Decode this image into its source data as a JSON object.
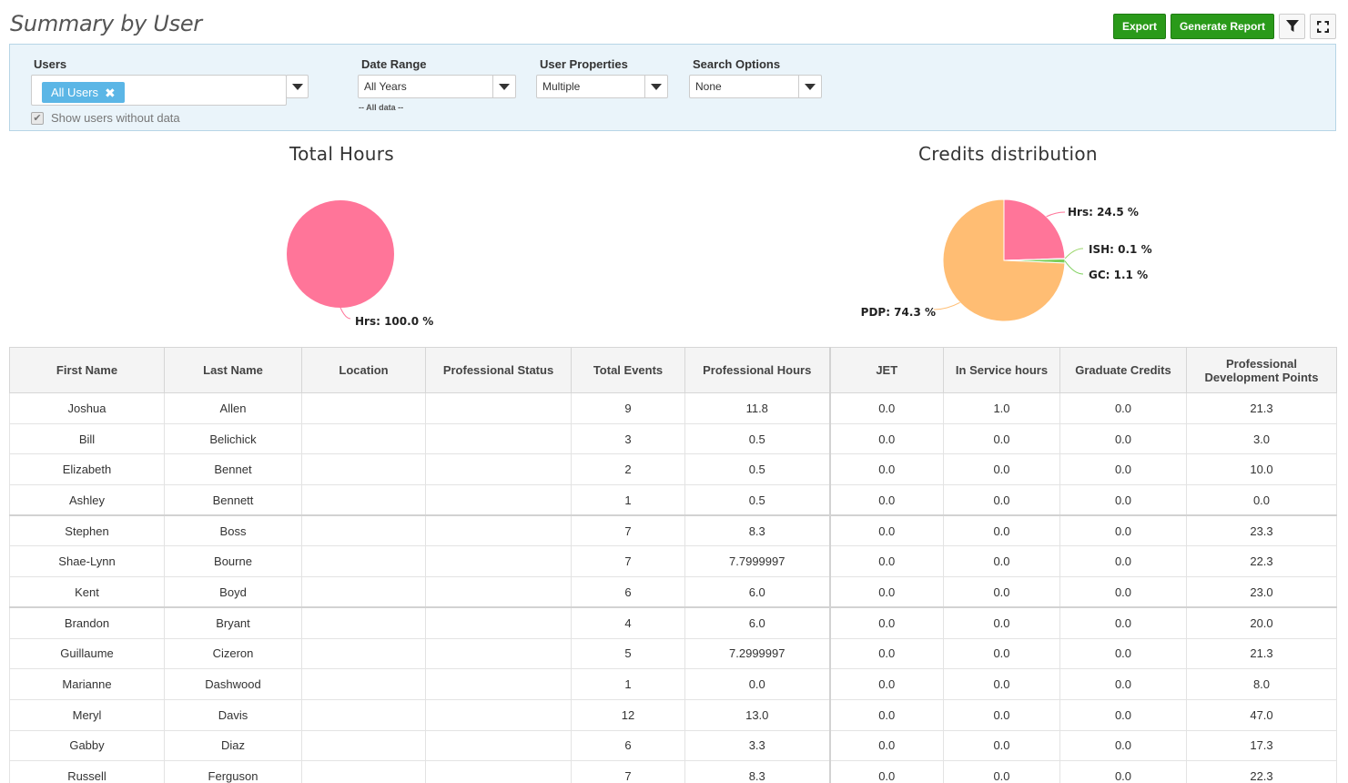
{
  "page": {
    "title": "Summary by User"
  },
  "toolbar": {
    "export_label": "Export",
    "generate_label": "Generate Report",
    "filter_icon": "filter-icon",
    "fullscreen_icon": "fullscreen-icon"
  },
  "filters": {
    "users": {
      "label": "Users",
      "tag": "All Users",
      "tag_remove": "✖",
      "show_without_data": "Show users without data",
      "show_without_data_checked": true
    },
    "date_range": {
      "label": "Date Range",
      "value": "All Years",
      "hint": "-- All data --"
    },
    "user_properties": {
      "label": "User Properties",
      "value": "Multiple"
    },
    "search_options": {
      "label": "Search Options",
      "value": "None"
    }
  },
  "chart_data": [
    {
      "type": "pie",
      "title": "Total Hours",
      "labels": [
        "Hrs"
      ],
      "values": [
        100.0
      ],
      "data_labels": [
        "Hrs: 100.0 %"
      ],
      "colors": [
        "#ff7599"
      ]
    },
    {
      "type": "pie",
      "title": "Credits distribution",
      "labels": [
        "Hrs",
        "ISH",
        "GC",
        "PDP"
      ],
      "values": [
        24.5,
        0.1,
        1.1,
        74.3
      ],
      "data_labels": [
        "Hrs: 24.5 %",
        "ISH: 0.1 %",
        "GC: 1.1 %",
        "PDP: 74.3 %"
      ],
      "colors": [
        "#ff7599",
        "#9ad66a",
        "#7ccf5a",
        "#ffbd73"
      ]
    }
  ],
  "table": {
    "columns": [
      "First Name",
      "Last Name",
      "Location",
      "Professional Status",
      "Total Events",
      "Professional Hours",
      "JET",
      "In Service hours",
      "Graduate Credits",
      "Professional Development Points"
    ],
    "rows": [
      [
        "Joshua",
        "Allen",
        "",
        "",
        "9",
        "11.8",
        "0.0",
        "1.0",
        "0.0",
        "21.3"
      ],
      [
        "Bill",
        "Belichick",
        "",
        "",
        "3",
        "0.5",
        "0.0",
        "0.0",
        "0.0",
        "3.0"
      ],
      [
        "Elizabeth",
        "Bennet",
        "",
        "",
        "2",
        "0.5",
        "0.0",
        "0.0",
        "0.0",
        "10.0"
      ],
      [
        "Ashley",
        "Bennett",
        "",
        "",
        "1",
        "0.5",
        "0.0",
        "0.0",
        "0.0",
        "0.0"
      ],
      [
        "Stephen",
        "Boss",
        "",
        "",
        "7",
        "8.3",
        "0.0",
        "0.0",
        "0.0",
        "23.3"
      ],
      [
        "Shae-Lynn",
        "Bourne",
        "",
        "",
        "7",
        "7.7999997",
        "0.0",
        "0.0",
        "0.0",
        "22.3"
      ],
      [
        "Kent",
        "Boyd",
        "",
        "",
        "6",
        "6.0",
        "0.0",
        "0.0",
        "0.0",
        "23.0"
      ],
      [
        "Brandon",
        "Bryant",
        "",
        "",
        "4",
        "6.0",
        "0.0",
        "0.0",
        "0.0",
        "20.0"
      ],
      [
        "Guillaume",
        "Cizeron",
        "",
        "",
        "5",
        "7.2999997",
        "0.0",
        "0.0",
        "0.0",
        "21.3"
      ],
      [
        "Marianne",
        "Dashwood",
        "",
        "",
        "1",
        "0.0",
        "0.0",
        "0.0",
        "0.0",
        "8.0"
      ],
      [
        "Meryl",
        "Davis",
        "",
        "",
        "12",
        "13.0",
        "0.0",
        "0.0",
        "0.0",
        "47.0"
      ],
      [
        "Gabby",
        "Diaz",
        "",
        "",
        "6",
        "3.3",
        "0.0",
        "0.0",
        "0.0",
        "17.3"
      ],
      [
        "Russell",
        "Ferguson",
        "",
        "",
        "7",
        "8.3",
        "0.0",
        "0.0",
        "0.0",
        "22.3"
      ]
    ]
  }
}
